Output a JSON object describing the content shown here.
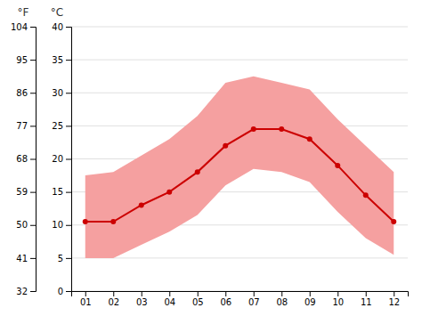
{
  "chart_data": {
    "type": "line",
    "y_label": "°C",
    "y2_label": "°F",
    "x": [
      1,
      2,
      3,
      4,
      5,
      6,
      7,
      8,
      9,
      10,
      11,
      12
    ],
    "xlim": [
      0.5,
      12.5
    ],
    "xticks": [
      {
        "value": 1,
        "label": "01"
      },
      {
        "value": 2,
        "label": "02"
      },
      {
        "value": 3,
        "label": "03"
      },
      {
        "value": 4,
        "label": "04"
      },
      {
        "value": 5,
        "label": "05"
      },
      {
        "value": 6,
        "label": "06"
      },
      {
        "value": 7,
        "label": "07"
      },
      {
        "value": 8,
        "label": "08"
      },
      {
        "value": 9,
        "label": "09"
      },
      {
        "value": 10,
        "label": "10"
      },
      {
        "value": 11,
        "label": "11"
      },
      {
        "value": 12,
        "label": "12"
      }
    ],
    "ylim": [
      0,
      40
    ],
    "yticks": [
      0,
      5,
      10,
      15,
      20,
      25,
      30,
      35,
      40
    ],
    "y2lim": [
      32,
      104
    ],
    "y2ticks": [
      32,
      41,
      50,
      59,
      68,
      77,
      86,
      95,
      104
    ],
    "grid": true,
    "series": [
      {
        "type": "band",
        "color": "#f5a0a0",
        "low": [
          5.0,
          5.0,
          7.0,
          9.0,
          11.5,
          16.0,
          18.5,
          18.0,
          16.5,
          12.0,
          8.0,
          5.5
        ],
        "high": [
          17.5,
          18.0,
          20.5,
          23.0,
          26.5,
          31.5,
          32.5,
          31.5,
          30.5,
          26.0,
          22.0,
          18.0
        ]
      },
      {
        "type": "line",
        "color": "#cc0000",
        "marker": "circle",
        "values": [
          10.5,
          10.5,
          13.0,
          15.0,
          18.0,
          22.0,
          24.5,
          24.5,
          23.0,
          19.0,
          14.5,
          10.5
        ]
      }
    ]
  }
}
